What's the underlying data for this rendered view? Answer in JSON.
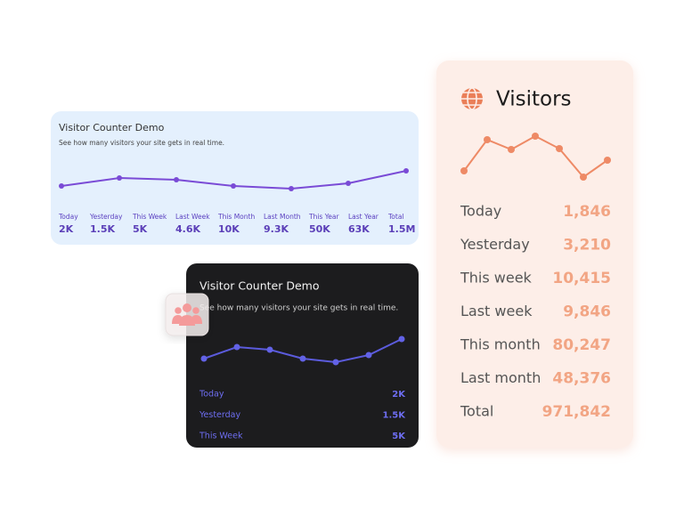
{
  "light_card": {
    "title": "Visitor Counter Demo",
    "subtitle": "See how many visitors your site gets in real time.",
    "stats": [
      {
        "label": "Today",
        "value": "2K"
      },
      {
        "label": "Yesterday",
        "value": "1.5K"
      },
      {
        "label": "This Week",
        "value": "5K"
      },
      {
        "label": "Last Week",
        "value": "4.6K"
      },
      {
        "label": "This Month",
        "value": "10K"
      },
      {
        "label": "Last Month",
        "value": "9.3K"
      },
      {
        "label": "This Year",
        "value": "50K"
      },
      {
        "label": "Last Year",
        "value": "63K"
      },
      {
        "label": "Total",
        "value": "1.5M"
      }
    ]
  },
  "dark_card": {
    "title": "Visitor Counter Demo",
    "subtitle": "See how many visitors your site gets in real time.",
    "rows": [
      {
        "label": "Today",
        "value": "2K"
      },
      {
        "label": "Yesterday",
        "value": "1.5K"
      },
      {
        "label": "This Week",
        "value": "5K"
      }
    ]
  },
  "visitors_card": {
    "title": "Visitors",
    "rows": [
      {
        "label": "Today",
        "value": "1,846"
      },
      {
        "label": "Yesterday",
        "value": "3,210"
      },
      {
        "label": "This week",
        "value": "10,415"
      },
      {
        "label": "Last week",
        "value": "9,846"
      },
      {
        "label": "This month",
        "value": "80,247"
      },
      {
        "label": "Last month",
        "value": "48,376"
      },
      {
        "label": "Total",
        "value": "971,842"
      }
    ]
  }
}
